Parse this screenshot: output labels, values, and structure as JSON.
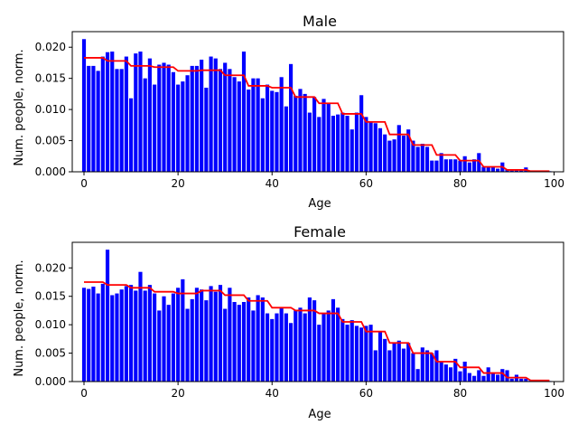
{
  "chart_data": [
    {
      "type": "bar",
      "title": "Male",
      "xlabel": "Age",
      "ylabel": "Num. people, norm.",
      "xlim": [
        -2.5,
        102
      ],
      "ylim": [
        0,
        0.0225
      ],
      "xticks": [
        0,
        20,
        40,
        60,
        80,
        100
      ],
      "yticks": [
        0.0,
        0.005,
        0.01,
        0.015,
        0.02
      ],
      "ytick_labels": [
        "0.000",
        "0.005",
        "0.010",
        "0.015",
        "0.020"
      ],
      "grid": false,
      "colors": {
        "bars": "#0000ff",
        "line": "#ff0000"
      },
      "x": [
        0,
        1,
        2,
        3,
        4,
        5,
        6,
        7,
        8,
        9,
        10,
        11,
        12,
        13,
        14,
        15,
        16,
        17,
        18,
        19,
        20,
        21,
        22,
        23,
        24,
        25,
        26,
        27,
        28,
        29,
        30,
        31,
        32,
        33,
        34,
        35,
        36,
        37,
        38,
        39,
        40,
        41,
        42,
        43,
        44,
        45,
        46,
        47,
        48,
        49,
        50,
        51,
        52,
        53,
        54,
        55,
        56,
        57,
        58,
        59,
        60,
        61,
        62,
        63,
        64,
        65,
        66,
        67,
        68,
        69,
        70,
        71,
        72,
        73,
        74,
        75,
        76,
        77,
        78,
        79,
        80,
        81,
        82,
        83,
        84,
        85,
        86,
        87,
        88,
        89,
        90,
        91,
        92,
        93,
        94,
        95,
        96,
        97,
        98,
        99
      ],
      "values": [
        0.0213,
        0.017,
        0.017,
        0.0162,
        0.0185,
        0.0192,
        0.0193,
        0.0165,
        0.0165,
        0.0185,
        0.0118,
        0.019,
        0.0193,
        0.015,
        0.0182,
        0.014,
        0.0172,
        0.0175,
        0.0172,
        0.016,
        0.014,
        0.0145,
        0.0155,
        0.017,
        0.017,
        0.018,
        0.0135,
        0.0185,
        0.0182,
        0.0165,
        0.0175,
        0.0165,
        0.0152,
        0.0145,
        0.0193,
        0.0132,
        0.015,
        0.015,
        0.0118,
        0.014,
        0.013,
        0.0128,
        0.0152,
        0.0105,
        0.0173,
        0.0122,
        0.0133,
        0.0125,
        0.0095,
        0.012,
        0.0088,
        0.0117,
        0.011,
        0.009,
        0.0092,
        0.0095,
        0.009,
        0.0068,
        0.0095,
        0.0123,
        0.0088,
        0.008,
        0.0078,
        0.007,
        0.006,
        0.005,
        0.0052,
        0.0075,
        0.0058,
        0.0068,
        0.005,
        0.004,
        0.0045,
        0.004,
        0.0018,
        0.0018,
        0.003,
        0.002,
        0.002,
        0.002,
        0.0018,
        0.0025,
        0.0015,
        0.002,
        0.003,
        0.0008,
        0.0008,
        0.0008,
        0.0005,
        0.0015,
        0.0004,
        0.0002,
        0.0002,
        0.0002,
        0.0007,
        0.0002,
        0.0001,
        0.0001,
        0.0001,
        0.0001
      ],
      "line_values": [
        0.0183,
        0.0183,
        0.0183,
        0.0183,
        0.0183,
        0.0178,
        0.0178,
        0.0178,
        0.0178,
        0.0178,
        0.017,
        0.017,
        0.017,
        0.017,
        0.017,
        0.0168,
        0.0168,
        0.0168,
        0.0168,
        0.0168,
        0.0162,
        0.0162,
        0.0162,
        0.0162,
        0.0162,
        0.0163,
        0.0163,
        0.0163,
        0.0163,
        0.0163,
        0.0155,
        0.0155,
        0.0155,
        0.0155,
        0.0155,
        0.0138,
        0.0138,
        0.0138,
        0.0138,
        0.0138,
        0.0135,
        0.0135,
        0.0135,
        0.0135,
        0.0135,
        0.012,
        0.012,
        0.012,
        0.012,
        0.012,
        0.011,
        0.011,
        0.011,
        0.011,
        0.011,
        0.0093,
        0.0093,
        0.0093,
        0.0093,
        0.0093,
        0.008,
        0.008,
        0.008,
        0.008,
        0.008,
        0.006,
        0.006,
        0.006,
        0.006,
        0.006,
        0.0043,
        0.0043,
        0.0043,
        0.0043,
        0.0043,
        0.0027,
        0.0027,
        0.0027,
        0.0027,
        0.0027,
        0.0018,
        0.0018,
        0.0018,
        0.0018,
        0.0018,
        0.0008,
        0.0008,
        0.0008,
        0.0008,
        0.0008,
        0.0003,
        0.0003,
        0.0003,
        0.0003,
        0.0003,
        0.0001,
        0.0001,
        0.0001,
        0.0001,
        0.0001
      ]
    },
    {
      "type": "bar",
      "title": "Female",
      "xlabel": "Age",
      "ylabel": "Num. people, norm.",
      "xlim": [
        -2.5,
        102
      ],
      "ylim": [
        0,
        0.0245
      ],
      "xticks": [
        0,
        20,
        40,
        60,
        80,
        100
      ],
      "yticks": [
        0.0,
        0.005,
        0.01,
        0.015,
        0.02
      ],
      "ytick_labels": [
        "0.000",
        "0.005",
        "0.010",
        "0.015",
        "0.020"
      ],
      "grid": false,
      "colors": {
        "bars": "#0000ff",
        "line": "#ff0000"
      },
      "x": [
        0,
        1,
        2,
        3,
        4,
        5,
        6,
        7,
        8,
        9,
        10,
        11,
        12,
        13,
        14,
        15,
        16,
        17,
        18,
        19,
        20,
        21,
        22,
        23,
        24,
        25,
        26,
        27,
        28,
        29,
        30,
        31,
        32,
        33,
        34,
        35,
        36,
        37,
        38,
        39,
        40,
        41,
        42,
        43,
        44,
        45,
        46,
        47,
        48,
        49,
        50,
        51,
        52,
        53,
        54,
        55,
        56,
        57,
        58,
        59,
        60,
        61,
        62,
        63,
        64,
        65,
        66,
        67,
        68,
        69,
        70,
        71,
        72,
        73,
        74,
        75,
        76,
        77,
        78,
        79,
        80,
        81,
        82,
        83,
        84,
        85,
        86,
        87,
        88,
        89,
        90,
        91,
        92,
        93,
        94,
        95,
        96,
        97,
        98,
        99
      ],
      "values": [
        0.0165,
        0.0163,
        0.0167,
        0.0155,
        0.0172,
        0.0232,
        0.0152,
        0.0155,
        0.0162,
        0.0168,
        0.017,
        0.016,
        0.0193,
        0.016,
        0.017,
        0.0155,
        0.0125,
        0.015,
        0.0135,
        0.0155,
        0.0165,
        0.018,
        0.0128,
        0.0145,
        0.0165,
        0.0162,
        0.0143,
        0.0168,
        0.0158,
        0.017,
        0.0128,
        0.0165,
        0.014,
        0.0135,
        0.014,
        0.0148,
        0.0125,
        0.0152,
        0.0148,
        0.012,
        0.011,
        0.012,
        0.013,
        0.012,
        0.0103,
        0.0125,
        0.013,
        0.012,
        0.0148,
        0.0143,
        0.01,
        0.012,
        0.0125,
        0.0145,
        0.013,
        0.011,
        0.01,
        0.0108,
        0.0098,
        0.0095,
        0.0098,
        0.01,
        0.0055,
        0.0088,
        0.0075,
        0.0055,
        0.0068,
        0.0072,
        0.0058,
        0.0068,
        0.005,
        0.0022,
        0.006,
        0.0055,
        0.005,
        0.0055,
        0.0035,
        0.003,
        0.0025,
        0.004,
        0.0018,
        0.0035,
        0.0015,
        0.001,
        0.002,
        0.001,
        0.0025,
        0.0015,
        0.0012,
        0.0022,
        0.002,
        0.0005,
        0.0012,
        0.0005,
        0.0005,
        0.0002,
        0.0002,
        0.0002,
        0.0002,
        0.0001
      ],
      "line_values": [
        0.0175,
        0.0175,
        0.0175,
        0.0175,
        0.0175,
        0.017,
        0.017,
        0.017,
        0.017,
        0.017,
        0.0165,
        0.0165,
        0.0165,
        0.0165,
        0.0165,
        0.0158,
        0.0158,
        0.0158,
        0.0158,
        0.0158,
        0.0155,
        0.0155,
        0.0155,
        0.0155,
        0.0155,
        0.016,
        0.016,
        0.016,
        0.016,
        0.016,
        0.0152,
        0.0152,
        0.0152,
        0.0152,
        0.0152,
        0.0142,
        0.0142,
        0.0142,
        0.0142,
        0.0142,
        0.013,
        0.013,
        0.013,
        0.013,
        0.013,
        0.0125,
        0.0125,
        0.0125,
        0.0125,
        0.0125,
        0.012,
        0.012,
        0.012,
        0.012,
        0.012,
        0.0105,
        0.0105,
        0.0105,
        0.0105,
        0.0105,
        0.0088,
        0.0088,
        0.0088,
        0.0088,
        0.0088,
        0.0068,
        0.0068,
        0.0068,
        0.0068,
        0.0068,
        0.005,
        0.005,
        0.005,
        0.005,
        0.005,
        0.0035,
        0.0035,
        0.0035,
        0.0035,
        0.0035,
        0.0025,
        0.0025,
        0.0025,
        0.0025,
        0.0025,
        0.0015,
        0.0015,
        0.0015,
        0.0015,
        0.0015,
        0.0007,
        0.0007,
        0.0007,
        0.0007,
        0.0007,
        0.0002,
        0.0002,
        0.0002,
        0.0002,
        0.0002
      ]
    }
  ]
}
